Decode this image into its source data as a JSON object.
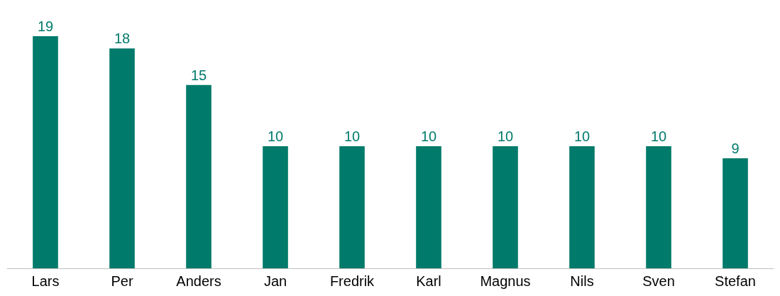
{
  "chart_data": {
    "type": "bar",
    "categories": [
      "Lars",
      "Per",
      "Anders",
      "Jan",
      "Fredrik",
      "Karl",
      "Magnus",
      "Nils",
      "Sven",
      "Stefan"
    ],
    "values": [
      19,
      18,
      15,
      10,
      10,
      10,
      10,
      10,
      10,
      9
    ],
    "color": "#007a6a",
    "data_labels": true
  }
}
